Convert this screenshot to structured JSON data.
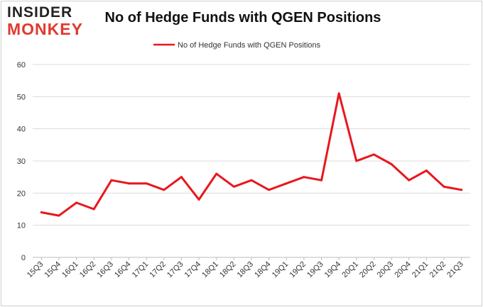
{
  "brand": {
    "logo_top": "INSIDER",
    "logo_bottom": "MONKEY",
    "accent_color": "#e03a2f"
  },
  "chart_data": {
    "type": "line",
    "title": "No of Hedge Funds with QGEN Positions",
    "xlabel": "",
    "ylabel": "",
    "ylim": [
      0,
      60
    ],
    "yticks": [
      0,
      10,
      20,
      30,
      40,
      50,
      60
    ],
    "grid": true,
    "legend_position": "top-center",
    "categories": [
      "15Q3",
      "15Q4",
      "16Q1",
      "16Q2",
      "16Q3",
      "16Q4",
      "17Q1",
      "17Q2",
      "17Q3",
      "17Q4",
      "18Q1",
      "18Q2",
      "18Q3",
      "18Q4",
      "19Q1",
      "19Q2",
      "19Q3",
      "19Q4",
      "20Q1",
      "20Q2",
      "20Q3",
      "20Q4",
      "21Q1",
      "21Q2",
      "21Q3"
    ],
    "series": [
      {
        "name": "No of Hedge Funds with QGEN Positions",
        "color": "#e8171d",
        "values": [
          14,
          13,
          17,
          15,
          24,
          23,
          23,
          21,
          25,
          18,
          26,
          22,
          24,
          21,
          23,
          25,
          24,
          51,
          30,
          32,
          29,
          24,
          27,
          22,
          21
        ]
      }
    ]
  }
}
